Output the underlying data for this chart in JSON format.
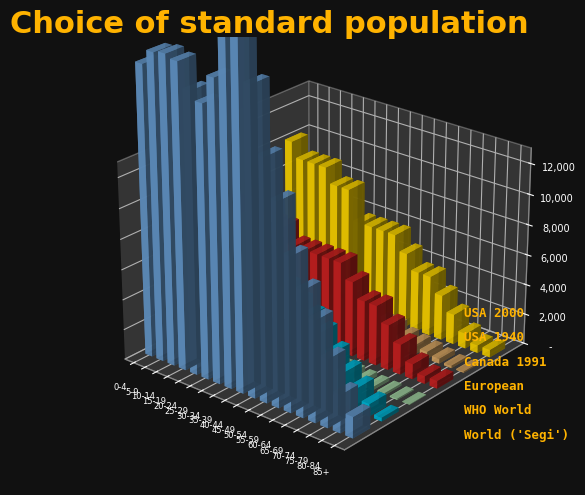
{
  "title": "Choice of standard population",
  "title_color": "#FFB300",
  "title_fontsize": 22,
  "background_color": "#111111",
  "axis_bg_color": "#444444",
  "legend_labels": [
    "USA 2000",
    "USA 1940",
    "Canada 1991",
    "European",
    "WHO World",
    "World ('Segi')"
  ],
  "legend_color": "#FFB300",
  "age_groups": [
    "0-4",
    "5-9",
    "10-14",
    "15-19",
    "20-24",
    "25-29",
    "30-34",
    "35-39",
    "40-44",
    "45-49",
    "50-54",
    "55-59",
    "60-64",
    "65-69",
    "70-74",
    "75-79",
    "80-84",
    "85+"
  ],
  "series_colors": [
    "#6699CC",
    "#00BBDD",
    "#AADDAA",
    "#CC2222",
    "#DDAA66",
    "#FFD700"
  ],
  "yticks": [
    0,
    2000,
    4000,
    6000,
    8000,
    10000,
    12000
  ],
  "data": {
    "USA 2000": [
      18987,
      19919,
      20057,
      19820,
      18257,
      17722,
      19511,
      22179,
      22479,
      19806,
      15680,
      13224,
      10088,
      8249,
      6649,
      4484,
      2512,
      1401
    ],
    "USA 1940": [
      9666,
      10052,
      9407,
      8660,
      8763,
      8999,
      8659,
      7996,
      7138,
      6300,
      5605,
      5002,
      4248,
      3213,
      2287,
      1542,
      817,
      247
    ],
    "Canada 1991": [
      670,
      720,
      750,
      800,
      900,
      900,
      830,
      720,
      660,
      600,
      540,
      470,
      380,
      290,
      210,
      140,
      80,
      30
    ],
    "European": [
      8000,
      7000,
      7000,
      7000,
      7000,
      6000,
      6000,
      6000,
      6000,
      6000,
      5000,
      4000,
      4000,
      3000,
      2000,
      1000,
      500,
      500
    ],
    "WHO World": [
      2400,
      2400,
      2400,
      2400,
      2400,
      2000,
      2000,
      2000,
      1600,
      1600,
      1200,
      1200,
      800,
      640,
      480,
      320,
      160,
      80
    ],
    "World ('Segi')": [
      10000,
      9000,
      9000,
      9000,
      8000,
      8000,
      6000,
      6000,
      6000,
      6000,
      5000,
      4000,
      4000,
      3000,
      2000,
      1000,
      500,
      500
    ]
  }
}
